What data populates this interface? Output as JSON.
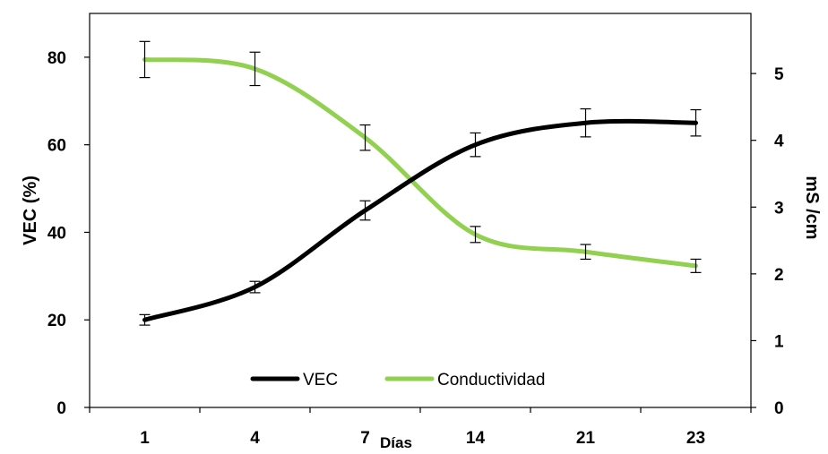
{
  "chart_data": {
    "type": "line",
    "title": "",
    "xlabel": "Días",
    "ylabel": "VEC (%)",
    "y2label": "mS /cm",
    "categories": [
      "1",
      "4",
      "7",
      "14",
      "21",
      "23"
    ],
    "ylim": [
      0,
      90
    ],
    "y2lim": [
      0,
      5.9
    ],
    "yticks": [
      0,
      20,
      40,
      60,
      80
    ],
    "y2ticks": [
      0,
      1,
      2,
      3,
      4,
      5
    ],
    "legend_position": "bottom-center",
    "series": [
      {
        "name": "VEC",
        "axis": "left",
        "color": "#000000",
        "values": [
          20,
          27.5,
          45,
          60,
          65,
          65
        ],
        "error": [
          1.2,
          1.3,
          2.2,
          2.7,
          3.2,
          3.0
        ]
      },
      {
        "name": "Conductividad",
        "axis": "right",
        "color": "#92d050",
        "values": [
          5.21,
          5.07,
          4.04,
          2.59,
          2.33,
          2.12
        ],
        "error": [
          0.27,
          0.25,
          0.19,
          0.12,
          0.11,
          0.1
        ]
      }
    ]
  }
}
